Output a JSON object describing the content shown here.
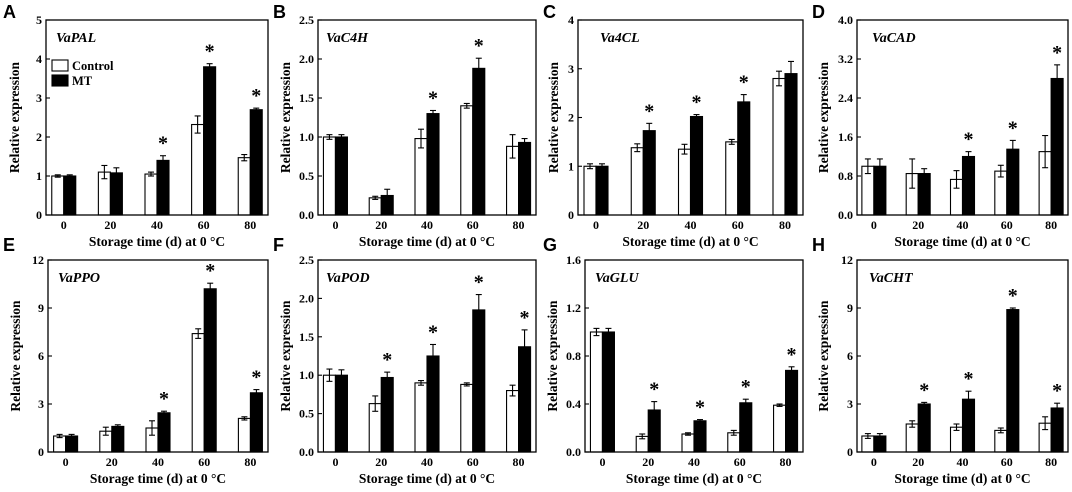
{
  "colors": {
    "background": "#ffffff",
    "axis": "#000000",
    "control": "#ffffff",
    "mt": "#000000"
  },
  "chart_data": [
    {
      "type": "bar",
      "panel_label": "A",
      "title": "VaPAL",
      "xlabel": "Storage time (d) at 0 °C",
      "ylabel": "Relative expression",
      "categories": [
        "0",
        "20",
        "40",
        "60",
        "80"
      ],
      "ylim": [
        0,
        5
      ],
      "yticks": [
        "0",
        "1",
        "2",
        "3",
        "4",
        "5"
      ],
      "series": {
        "control": {
          "values": [
            1.0,
            1.1,
            1.05,
            2.32,
            1.47
          ],
          "errors": [
            0.03,
            0.17,
            0.05,
            0.22,
            0.08
          ]
        },
        "mt": {
          "values": [
            1.0,
            1.08,
            1.4,
            3.8,
            2.7
          ],
          "errors": [
            0.03,
            0.13,
            0.12,
            0.08,
            0.04
          ]
        }
      },
      "significance_marker": "*",
      "significant": [
        false,
        false,
        true,
        true,
        true
      ],
      "legend": {
        "location": "top-left",
        "labels": [
          "Control",
          "MT"
        ]
      }
    },
    {
      "type": "bar",
      "panel_label": "B",
      "title": "VaC4H",
      "xlabel": "Storage time (d) at 0 °C",
      "ylabel": "Relative expression",
      "categories": [
        "0",
        "20",
        "40",
        "60",
        "80"
      ],
      "ylim": [
        0,
        2.5
      ],
      "yticks": [
        "0.0",
        "0.5",
        "1.0",
        "1.5",
        "2.0",
        "2.5"
      ],
      "series": {
        "control": {
          "values": [
            1.0,
            0.22,
            0.98,
            1.4,
            0.88
          ],
          "errors": [
            0.03,
            0.02,
            0.12,
            0.03,
            0.15
          ]
        },
        "mt": {
          "values": [
            1.0,
            0.25,
            1.3,
            1.88,
            0.93
          ],
          "errors": [
            0.03,
            0.08,
            0.04,
            0.13,
            0.05
          ]
        }
      },
      "significance_marker": "*",
      "significant": [
        false,
        false,
        true,
        true,
        false
      ]
    },
    {
      "type": "bar",
      "panel_label": "C",
      "title": "Va4CL",
      "xlabel": "Storage time (d) at 0 °C",
      "ylabel": "Relative expression",
      "categories": [
        "0",
        "20",
        "40",
        "60",
        "80"
      ],
      "ylim": [
        0,
        4
      ],
      "yticks": [
        "0",
        "1",
        "2",
        "3",
        "4"
      ],
      "series": {
        "control": {
          "values": [
            1.0,
            1.38,
            1.35,
            1.5,
            2.8
          ],
          "errors": [
            0.05,
            0.08,
            0.1,
            0.05,
            0.15
          ]
        },
        "mt": {
          "values": [
            1.0,
            1.73,
            2.02,
            2.32,
            2.9
          ],
          "errors": [
            0.05,
            0.15,
            0.04,
            0.15,
            0.25
          ]
        }
      },
      "significance_marker": "*",
      "significant": [
        false,
        true,
        true,
        true,
        false
      ]
    },
    {
      "type": "bar",
      "panel_label": "D",
      "title": "VaCAD",
      "xlabel": "Storage time (d) at 0 °C",
      "ylabel": "Relative expression",
      "categories": [
        "0",
        "20",
        "40",
        "60",
        "80"
      ],
      "ylim": [
        0,
        4.0
      ],
      "yticks": [
        "0.0",
        "0.8",
        "1.6",
        "2.4",
        "3.2",
        "4.0"
      ],
      "series": {
        "control": {
          "values": [
            1.0,
            0.85,
            0.73,
            0.9,
            1.3
          ],
          "errors": [
            0.15,
            0.3,
            0.18,
            0.12,
            0.33
          ]
        },
        "mt": {
          "values": [
            1.0,
            0.85,
            1.2,
            1.35,
            2.8
          ],
          "errors": [
            0.15,
            0.1,
            0.1,
            0.18,
            0.28
          ]
        }
      },
      "significance_marker": "*",
      "significant": [
        false,
        false,
        true,
        true,
        true
      ]
    },
    {
      "type": "bar",
      "panel_label": "E",
      "title": "VaPPO",
      "xlabel": "Storage time (d) at 0 °C",
      "ylabel": "Relative expression",
      "categories": [
        "0",
        "20",
        "40",
        "60",
        "80"
      ],
      "ylim": [
        0,
        12
      ],
      "yticks": [
        "0",
        "3",
        "6",
        "9",
        "12"
      ],
      "series": {
        "control": {
          "values": [
            1.0,
            1.3,
            1.5,
            7.4,
            2.1
          ],
          "errors": [
            0.1,
            0.25,
            0.45,
            0.3,
            0.1
          ]
        },
        "mt": {
          "values": [
            1.0,
            1.6,
            2.45,
            10.2,
            3.7
          ],
          "errors": [
            0.1,
            0.1,
            0.1,
            0.35,
            0.2
          ]
        }
      },
      "significance_marker": "*",
      "significant": [
        false,
        false,
        true,
        true,
        true
      ]
    },
    {
      "type": "bar",
      "panel_label": "F",
      "title": "VaPOD",
      "xlabel": "Storage time (d) at 0 °C",
      "ylabel": "Relative expression",
      "categories": [
        "0",
        "20",
        "40",
        "60",
        "80"
      ],
      "ylim": [
        0,
        2.5
      ],
      "yticks": [
        "0.0",
        "0.5",
        "1.0",
        "1.5",
        "2.0",
        "2.5"
      ],
      "series": {
        "control": {
          "values": [
            1.0,
            0.63,
            0.9,
            0.88,
            0.8
          ],
          "errors": [
            0.08,
            0.1,
            0.03,
            0.02,
            0.07
          ]
        },
        "mt": {
          "values": [
            1.0,
            0.97,
            1.25,
            1.85,
            1.37
          ],
          "errors": [
            0.07,
            0.07,
            0.15,
            0.2,
            0.22
          ]
        }
      },
      "significance_marker": "*",
      "significant": [
        false,
        true,
        true,
        true,
        true
      ]
    },
    {
      "type": "bar",
      "panel_label": "G",
      "title": "VaGLU",
      "xlabel": "Storage time (d) at 0 °C",
      "ylabel": "Relative expression",
      "categories": [
        "0",
        "20",
        "40",
        "60",
        "80"
      ],
      "ylim": [
        0,
        1.6
      ],
      "yticks": [
        "0.0",
        "0.4",
        "0.8",
        "1.2",
        "1.6"
      ],
      "series": {
        "control": {
          "values": [
            1.0,
            0.13,
            0.15,
            0.16,
            0.39
          ],
          "errors": [
            0.03,
            0.02,
            0.01,
            0.02,
            0.01
          ]
        },
        "mt": {
          "values": [
            1.0,
            0.35,
            0.26,
            0.41,
            0.68
          ],
          "errors": [
            0.03,
            0.07,
            0.01,
            0.03,
            0.03
          ]
        }
      },
      "significance_marker": "*",
      "significant": [
        false,
        true,
        true,
        true,
        true
      ]
    },
    {
      "type": "bar",
      "panel_label": "H",
      "title": "VaCHT",
      "xlabel": "Storage time (d) at 0 °C",
      "ylabel": "Relative expression",
      "categories": [
        "0",
        "20",
        "40",
        "60",
        "80"
      ],
      "ylim": [
        0,
        12
      ],
      "yticks": [
        "0",
        "3",
        "6",
        "9",
        "12"
      ],
      "series": {
        "control": {
          "values": [
            1.0,
            1.75,
            1.55,
            1.35,
            1.8
          ],
          "errors": [
            0.15,
            0.2,
            0.2,
            0.15,
            0.4
          ]
        },
        "mt": {
          "values": [
            1.0,
            3.0,
            3.3,
            8.9,
            2.75
          ],
          "errors": [
            0.15,
            0.1,
            0.5,
            0.1,
            0.3
          ]
        }
      },
      "significance_marker": "*",
      "significant": [
        false,
        true,
        true,
        true,
        true
      ]
    }
  ]
}
